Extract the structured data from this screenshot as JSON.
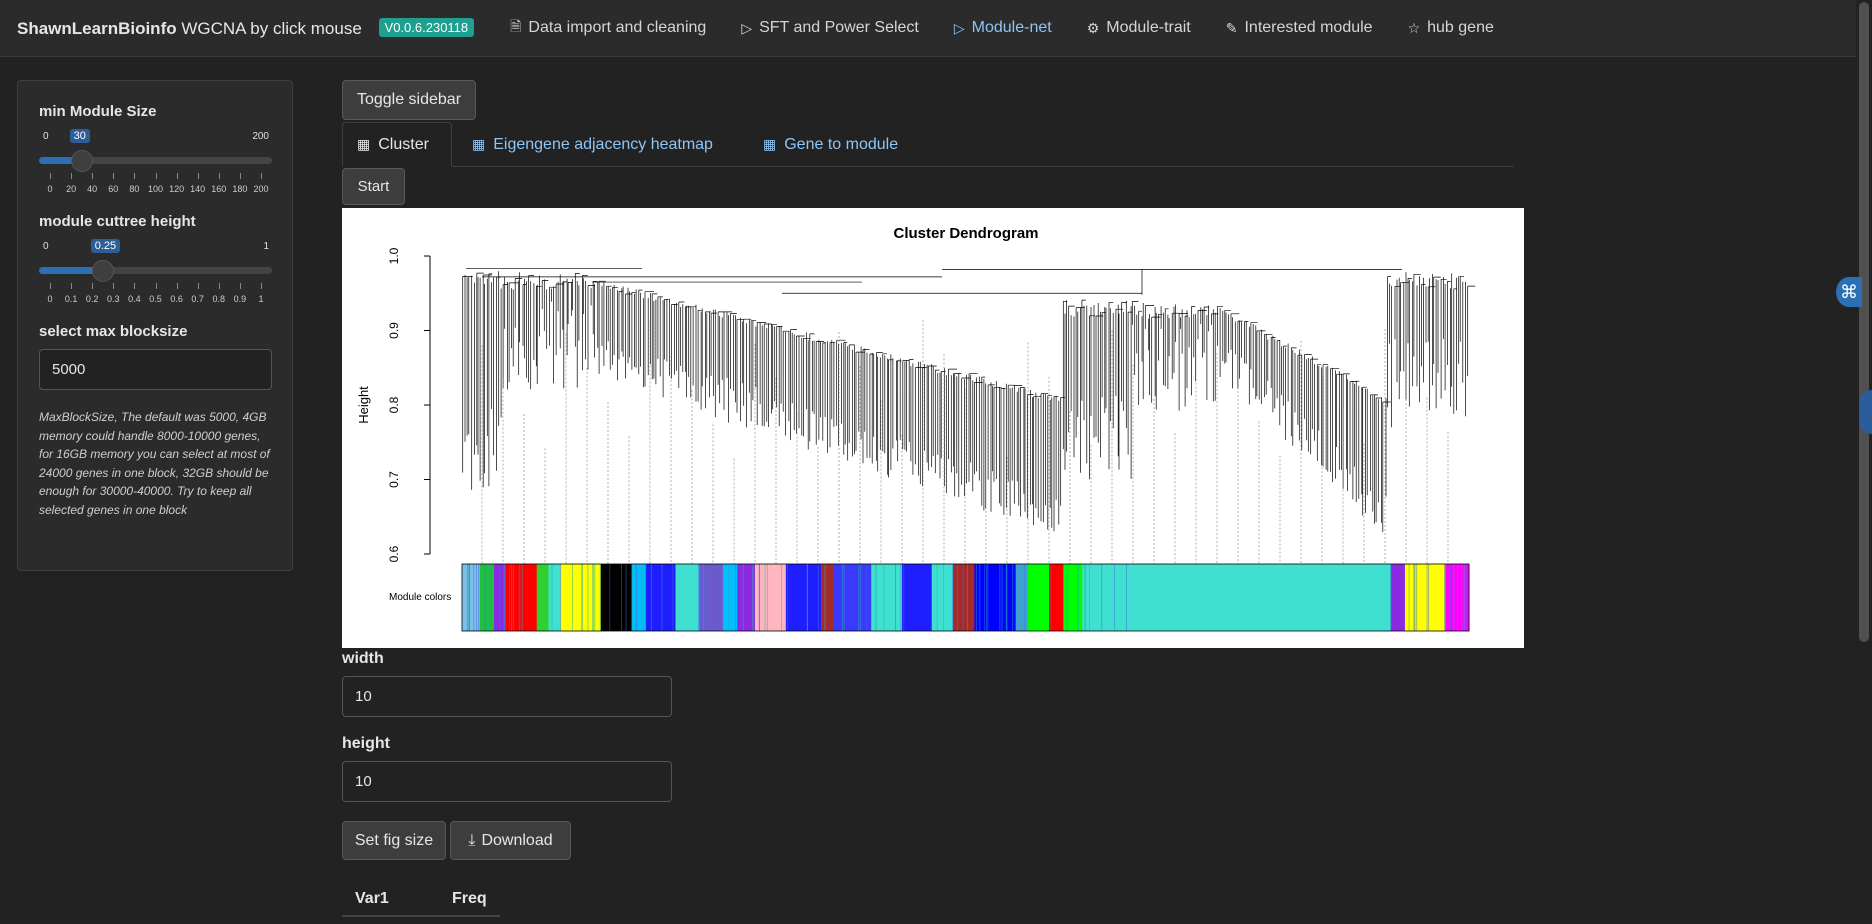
{
  "navbar": {
    "brand_bold": "ShawnLearnBioinfo",
    "brand_rest": "WGCNA by click mouse",
    "version": "V0.0.6.230118",
    "links": [
      {
        "label": "Data import and cleaning",
        "icon": "file-icon",
        "glyph": "🗎"
      },
      {
        "label": "SFT and Power Select",
        "icon": "play-circle-icon",
        "glyph": "▷"
      },
      {
        "label": "Module-net",
        "icon": "play-circle-icon",
        "glyph": "▷"
      },
      {
        "label": "Module-trait",
        "icon": "gear-icon",
        "glyph": "⚙"
      },
      {
        "label": "Interested module",
        "icon": "paintbrush-icon",
        "glyph": "✎"
      },
      {
        "label": "hub gene",
        "icon": "star-icon",
        "glyph": "☆"
      }
    ],
    "active_index": 2
  },
  "sidebar": {
    "min_module_size": {
      "label": "min Module Size",
      "min": "0",
      "max": "200",
      "value": "30",
      "value_fraction": 0.15,
      "ticks": [
        "0",
        "20",
        "40",
        "60",
        "80",
        "100",
        "120",
        "140",
        "160",
        "180",
        "200"
      ]
    },
    "cuttree_height": {
      "label": "module cuttree height",
      "min": "0",
      "max": "1",
      "value": "0.25",
      "value_fraction": 0.25,
      "ticks": [
        "0",
        "0.1",
        "0.2",
        "0.3",
        "0.4",
        "0.5",
        "0.6",
        "0.7",
        "0.8",
        "0.9",
        "1"
      ]
    },
    "blocksize": {
      "label": "select max blocksize",
      "value": "5000"
    },
    "help_text": "MaxBlockSize, The default was 5000, 4GB memory could handle 8000-10000 genes, for 16GB memory you can select at most of 24000 genes in one block, 32GB should be enough for 30000-40000. Try to keep all selected genes in one block"
  },
  "main": {
    "toggle_label": "Toggle sidebar",
    "tabs": [
      {
        "label": "Cluster",
        "icon": "table-icon"
      },
      {
        "label": "Eigengene adjacency heatmap",
        "icon": "table-icon"
      },
      {
        "label": "Gene to module",
        "icon": "table-icon"
      }
    ],
    "start_label": "Start",
    "width_label": "width",
    "width_value": "10",
    "height_label": "height",
    "height_value": "10",
    "set_fig_label": "Set fig size",
    "download_label": "Download",
    "table_headers": [
      "Var1",
      "Freq"
    ]
  },
  "chart_data": {
    "type": "dendrogram",
    "title": "Cluster Dendrogram",
    "ylabel": "Height",
    "ylim": [
      0.6,
      1.0
    ],
    "yticks": [
      "0.6",
      "0.7",
      "0.8",
      "0.9",
      "1.0"
    ],
    "color_bar_label": "Module colors",
    "module_colors": [
      {
        "color": "#7cc0e8",
        "width": 1.5
      },
      {
        "color": "#1fbf3f",
        "width": 1.2
      },
      {
        "color": "#8a2be2",
        "width": 1.0
      },
      {
        "color": "#ff0000",
        "width": 2.6
      },
      {
        "color": "#30d030",
        "width": 1.0
      },
      {
        "color": "#40e0d0",
        "width": 1.0
      },
      {
        "color": "#ffff00",
        "width": 3.4
      },
      {
        "color": "#000000",
        "width": 2.6
      },
      {
        "color": "#00bfff",
        "width": 1.2
      },
      {
        "color": "#1e1eff",
        "width": 2.5
      },
      {
        "color": "#40e0d0",
        "width": 2.0
      },
      {
        "color": "#6a5acd",
        "width": 2.0
      },
      {
        "color": "#00bfff",
        "width": 1.2
      },
      {
        "color": "#8a2be2",
        "width": 1.5
      },
      {
        "color": "#ffb6c1",
        "width": 2.6
      },
      {
        "color": "#1e1eff",
        "width": 3.0
      },
      {
        "color": "#a52a2a",
        "width": 1.0
      },
      {
        "color": "#3a3aff",
        "width": 3.2
      },
      {
        "color": "#40e0d0",
        "width": 2.6
      },
      {
        "color": "#1e1eff",
        "width": 2.5
      },
      {
        "color": "#40e0d0",
        "width": 1.8
      },
      {
        "color": "#a52a2a",
        "width": 1.8
      },
      {
        "color": "#0000ff",
        "width": 3.5
      },
      {
        "color": "#40a0d0",
        "width": 1.0
      },
      {
        "color": "#00ff00",
        "width": 1.8
      },
      {
        "color": "#ff0000",
        "width": 1.2
      },
      {
        "color": "#00ff00",
        "width": 1.6
      },
      {
        "color": "#40e0d0",
        "width": 26.0
      },
      {
        "color": "#8a2be2",
        "width": 1.2
      },
      {
        "color": "#ffff00",
        "width": 3.4
      },
      {
        "color": "#ff00ff",
        "width": 2.0
      }
    ]
  }
}
